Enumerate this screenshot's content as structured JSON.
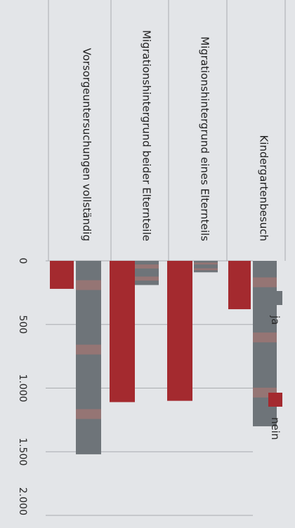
{
  "chart_data": {
    "type": "bar",
    "orientation": "horizontal",
    "title": "",
    "xlabel": "",
    "ylabel": "",
    "categories": [
      "Kindergartenbesuch",
      "Migrationshintergrund eines Elternteils",
      "Migrationshintergrund beider Elternteile",
      "Vorsorgeuntersuchungen vollständig"
    ],
    "series": [
      {
        "name": "ja",
        "color": "#6e7479",
        "values": [
          1300,
          90,
          190,
          1520
        ]
      },
      {
        "name": "nein",
        "color": "#a42a2f",
        "values": [
          380,
          1100,
          1110,
          220
        ]
      }
    ],
    "ticks": [
      {
        "value": 0,
        "label": "0"
      },
      {
        "value": 500,
        "label": "500"
      },
      {
        "value": 1000,
        "label": "1.000"
      },
      {
        "value": 1500,
        "label": "1.500"
      },
      {
        "value": 2000,
        "label": "2.000"
      }
    ],
    "xlim": [
      0,
      2000
    ],
    "grid": true,
    "legend": "top",
    "rotation": "90deg-clockwise"
  }
}
